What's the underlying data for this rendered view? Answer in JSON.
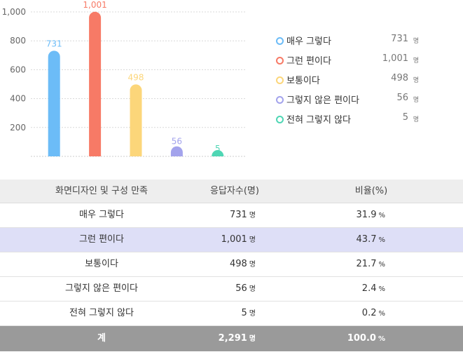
{
  "chart_data": {
    "type": "bar",
    "categories": [
      "매우 그렇다",
      "그런 편이다",
      "보통이다",
      "그렇지 않은 편이다",
      "전혀 그렇지 않다"
    ],
    "values": [
      731,
      1001,
      498,
      56,
      5
    ],
    "value_labels": [
      "731",
      "1,001",
      "498",
      "56",
      "5"
    ],
    "colors": [
      "#6cbcf7",
      "#f77a66",
      "#fcd67a",
      "#a3a3ec",
      "#4fd6b4"
    ],
    "yticks": [
      200,
      400,
      600,
      800,
      1000
    ],
    "ytick_labels": [
      "200",
      "400",
      "600",
      "800",
      "1,000"
    ],
    "ylim": [
      0,
      1000
    ],
    "grid": true,
    "legend_position": "right"
  },
  "legend": [
    {
      "label": "매우 그렇다",
      "value": "731",
      "unit": "명"
    },
    {
      "label": "그런 편이다",
      "value": "1,001",
      "unit": "명"
    },
    {
      "label": "보통이다",
      "value": "498",
      "unit": "명"
    },
    {
      "label": "그렇지 않은 편이다",
      "value": "56",
      "unit": "명"
    },
    {
      "label": "전혀 그렇지 않다",
      "value": "5",
      "unit": "명"
    }
  ],
  "table": {
    "headers": [
      "화면디자인 및 구성 만족",
      "응답자수(명)",
      "비율(%)"
    ],
    "rows": [
      {
        "label": "매우 그렇다",
        "count": "731",
        "ratio": "31.9"
      },
      {
        "label": "그런 편이다",
        "count": "1,001",
        "ratio": "43.7"
      },
      {
        "label": "보통이다",
        "count": "498",
        "ratio": "21.7"
      },
      {
        "label": "그렇지 않은 편이다",
        "count": "56",
        "ratio": "2.4"
      },
      {
        "label": "전혀 그렇지 않다",
        "count": "5",
        "ratio": "0.2"
      }
    ],
    "total": {
      "label": "계",
      "count": "2,291",
      "ratio": "100.0"
    },
    "count_unit": "명",
    "ratio_unit": "%"
  }
}
